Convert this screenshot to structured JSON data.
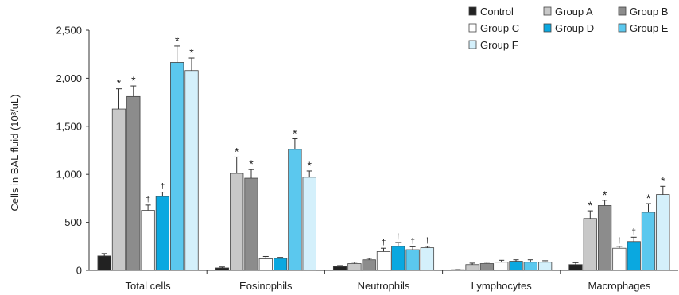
{
  "chart_data": {
    "type": "bar",
    "ylabel": "Cells in BAL fluid (10³/uL)",
    "ylim": [
      0,
      2500
    ],
    "yticks": [
      0,
      500,
      1000,
      1500,
      2000,
      2500
    ],
    "ytick_labels": [
      "0",
      "500",
      "1,000",
      "1,500",
      "2,000",
      "2,500"
    ],
    "grid": false,
    "legend_position": "top-right",
    "categories": [
      "Total cells",
      "Eosinophils",
      "Neutrophils",
      "Lymphocytes",
      "Macrophages"
    ],
    "series": [
      {
        "name": "Control",
        "color": "#222222",
        "values": [
          150,
          25,
          40,
          5,
          60
        ],
        "errors": [
          25,
          10,
          10,
          3,
          20
        ],
        "marks": [
          "",
          "",
          "",
          "",
          ""
        ]
      },
      {
        "name": "Group A",
        "color": "#c8c8c8",
        "values": [
          1680,
          1010,
          70,
          60,
          540
        ],
        "errors": [
          210,
          170,
          15,
          15,
          80
        ],
        "marks": [
          "*",
          "*",
          "",
          "",
          "*"
        ]
      },
      {
        "name": "Group B",
        "color": "#8c8c8c",
        "values": [
          1810,
          960,
          110,
          70,
          675
        ],
        "errors": [
          110,
          90,
          15,
          15,
          55
        ],
        "marks": [
          "*",
          "*",
          "",
          "",
          "*"
        ]
      },
      {
        "name": "Group C",
        "color": "#ffffff",
        "values": [
          625,
          120,
          195,
          85,
          230
        ],
        "errors": [
          55,
          25,
          35,
          20,
          20
        ],
        "marks": [
          "†",
          "",
          "†",
          "",
          "†"
        ]
      },
      {
        "name": "Group D",
        "color": "#0aa8e0",
        "values": [
          770,
          125,
          250,
          95,
          300
        ],
        "errors": [
          45,
          10,
          40,
          15,
          45
        ],
        "marks": [
          "†",
          "",
          "†",
          "",
          "†"
        ]
      },
      {
        "name": "Group E",
        "color": "#5bc8ee",
        "values": [
          2165,
          1260,
          215,
          85,
          605
        ],
        "errors": [
          170,
          110,
          30,
          25,
          90
        ],
        "marks": [
          "*",
          "*",
          "†",
          "",
          "*"
        ]
      },
      {
        "name": "Group F",
        "color": "#d4f0fb",
        "values": [
          2080,
          970,
          235,
          85,
          790
        ],
        "errors": [
          130,
          65,
          15,
          15,
          85
        ],
        "marks": [
          "*",
          "*",
          "†",
          "",
          "*"
        ]
      }
    ]
  }
}
